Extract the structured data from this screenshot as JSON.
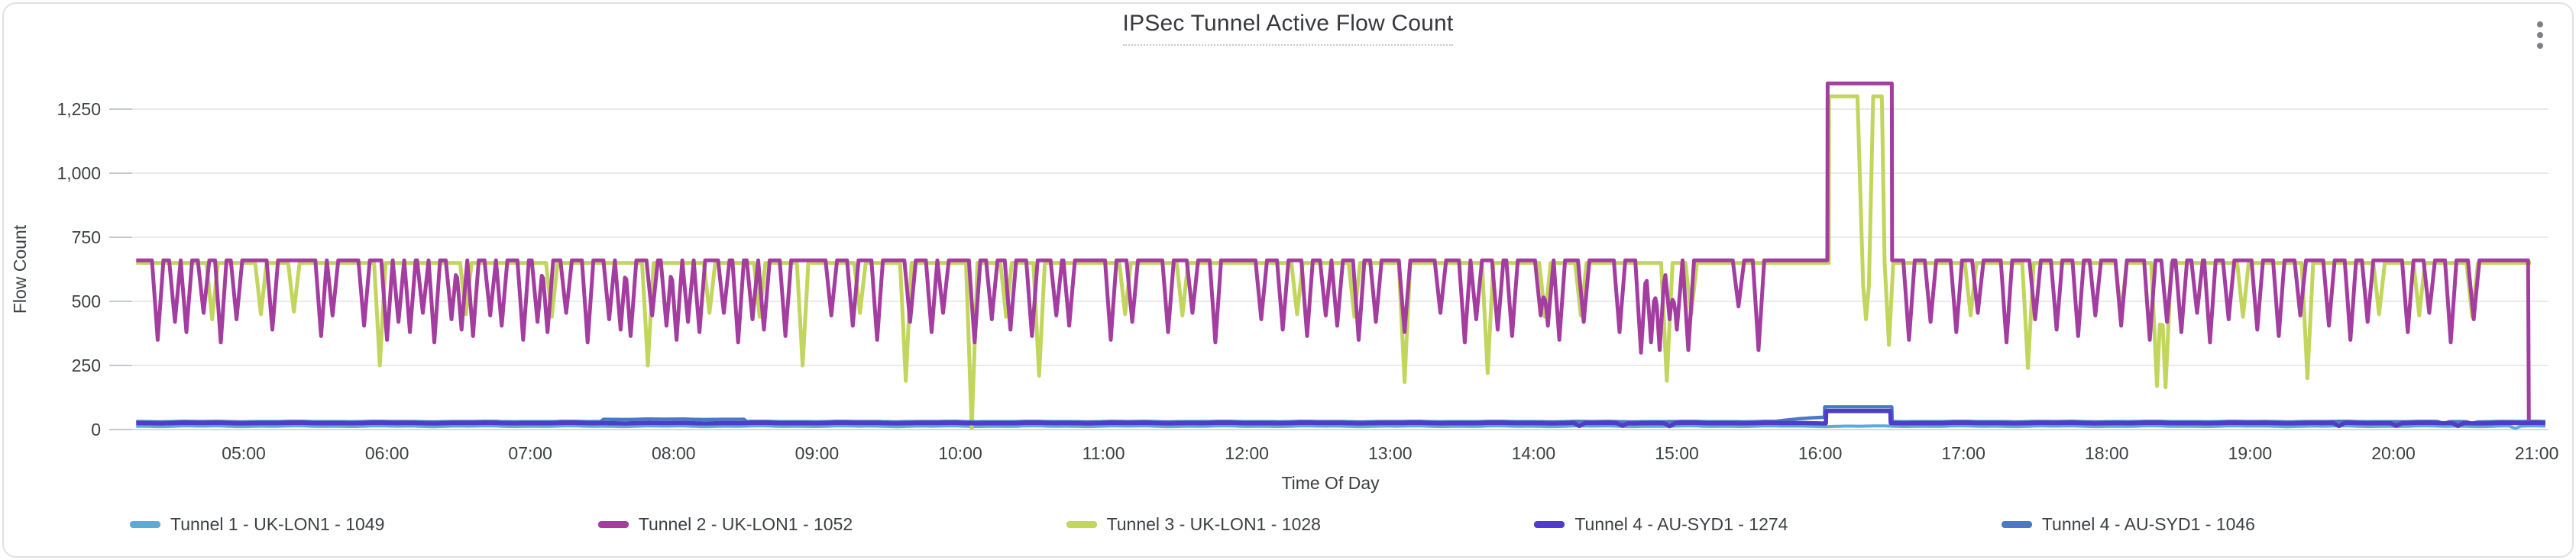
{
  "panel": {
    "title": "IPSec Tunnel Active Flow Count",
    "menu_icon": "kebab-menu"
  },
  "chart_data": {
    "type": "line",
    "title": "IPSec Tunnel Active Flow Count",
    "xlabel": "Time Of Day",
    "ylabel": "Flow Count",
    "grid": true,
    "legend_position": "bottom",
    "x_unit": "hour-of-day",
    "x_range": [
      4.25,
      21.06
    ],
    "ylim": [
      0,
      1400
    ],
    "x_tick_values": [
      5,
      6,
      7,
      8,
      9,
      10,
      11,
      12,
      13,
      14,
      15,
      16,
      17,
      18,
      19,
      20,
      21
    ],
    "x_tick_labels": [
      "05:00",
      "06:00",
      "07:00",
      "08:00",
      "09:00",
      "10:00",
      "11:00",
      "12:00",
      "13:00",
      "14:00",
      "15:00",
      "16:00",
      "17:00",
      "18:00",
      "19:00",
      "20:00",
      "21:00"
    ],
    "y_tick_values": [
      0,
      250,
      500,
      750,
      1000,
      1250
    ],
    "y_tick_labels": [
      "0",
      "250",
      "500",
      "750",
      "1,000",
      "1,250"
    ],
    "grid_color": "#e9eaed",
    "axis_line_color": "#d6d9dd",
    "text_color": "#3c4043",
    "series": [
      {
        "name": "Tunnel 1 - UK-LON1 - 1049",
        "color": "#5ea9d6",
        "width": 4,
        "baseline": 13,
        "noise": 2,
        "start": 4.25,
        "end": 21.06,
        "dips": [
          [
            20.85,
            4
          ]
        ]
      },
      {
        "name": "Tunnel 2 - UK-LON1 - 1052",
        "color": "#a43da0",
        "width": 5,
        "baseline": 660,
        "noise": 0,
        "start": 4.25,
        "end": 20.945,
        "overrides": [
          [
            [
              16.05,
              660
            ],
            [
              16.052,
              1350
            ],
            [
              16.5,
              1350
            ],
            [
              16.502,
              660
            ]
          ],
          [
            [
              20.94,
              660
            ],
            [
              20.945,
              25
            ]
          ]
        ],
        "dips": [
          [
            4.4,
            350
          ],
          [
            4.52,
            420
          ],
          [
            4.6,
            380
          ],
          [
            4.72,
            455
          ],
          [
            4.84,
            340
          ],
          [
            4.95,
            430
          ],
          [
            5.2,
            390
          ],
          [
            5.54,
            365
          ],
          [
            5.62,
            445
          ],
          [
            5.84,
            405
          ],
          [
            6.0,
            350
          ],
          [
            6.08,
            420
          ],
          [
            6.16,
            380
          ],
          [
            6.25,
            455
          ],
          [
            6.33,
            340
          ],
          [
            6.45,
            430
          ],
          [
            6.52,
            390
          ],
          [
            6.6,
            365
          ],
          [
            6.72,
            445
          ],
          [
            6.8,
            405
          ],
          [
            6.95,
            350
          ],
          [
            7.05,
            420
          ],
          [
            7.12,
            380
          ],
          [
            7.25,
            455
          ],
          [
            7.4,
            340
          ],
          [
            7.55,
            430
          ],
          [
            7.63,
            390
          ],
          [
            7.7,
            365
          ],
          [
            7.85,
            445
          ],
          [
            7.95,
            405
          ],
          [
            8.02,
            350
          ],
          [
            8.1,
            420
          ],
          [
            8.18,
            380
          ],
          [
            8.35,
            455
          ],
          [
            8.45,
            340
          ],
          [
            8.55,
            430
          ],
          [
            8.63,
            390
          ],
          [
            8.78,
            365
          ],
          [
            9.1,
            445
          ],
          [
            9.25,
            405
          ],
          [
            9.42,
            350
          ],
          [
            9.65,
            420
          ],
          [
            9.8,
            380
          ],
          [
            9.88,
            455
          ],
          [
            10.1,
            340
          ],
          [
            10.22,
            430
          ],
          [
            10.35,
            390
          ],
          [
            10.5,
            365
          ],
          [
            10.67,
            445
          ],
          [
            10.76,
            405
          ],
          [
            11.05,
            350
          ],
          [
            11.2,
            420
          ],
          [
            11.45,
            380
          ],
          [
            11.62,
            455
          ],
          [
            11.78,
            340
          ],
          [
            12.1,
            430
          ],
          [
            12.25,
            390
          ],
          [
            12.42,
            365
          ],
          [
            12.55,
            445
          ],
          [
            12.63,
            405
          ],
          [
            12.78,
            350
          ],
          [
            12.9,
            420
          ],
          [
            13.1,
            380
          ],
          [
            13.35,
            455
          ],
          [
            13.52,
            340
          ],
          [
            13.6,
            430
          ],
          [
            13.75,
            390
          ],
          [
            13.85,
            365
          ],
          [
            14.05,
            445
          ],
          [
            14.1,
            405
          ],
          [
            14.18,
            350
          ],
          [
            14.35,
            420
          ],
          [
            14.6,
            380
          ],
          [
            14.75,
            300
          ],
          [
            14.82,
            340
          ],
          [
            14.88,
            310
          ],
          [
            14.95,
            430
          ],
          [
            15.0,
            390
          ],
          [
            15.08,
            310
          ],
          [
            15.43,
            480
          ],
          [
            15.57,
            310
          ],
          [
            16.62,
            350
          ],
          [
            16.77,
            420
          ],
          [
            16.95,
            380
          ],
          [
            17.1,
            455
          ],
          [
            17.3,
            340
          ],
          [
            17.5,
            430
          ],
          [
            17.65,
            390
          ],
          [
            17.8,
            365
          ],
          [
            17.92,
            445
          ],
          [
            18.1,
            405
          ],
          [
            18.3,
            350
          ],
          [
            18.42,
            420
          ],
          [
            18.52,
            380
          ],
          [
            18.63,
            455
          ],
          [
            18.72,
            340
          ],
          [
            18.85,
            430
          ],
          [
            19.05,
            390
          ],
          [
            19.2,
            365
          ],
          [
            19.35,
            445
          ],
          [
            19.55,
            405
          ],
          [
            19.7,
            350
          ],
          [
            19.82,
            420
          ],
          [
            20.1,
            380
          ],
          [
            20.25,
            455
          ],
          [
            20.4,
            340
          ],
          [
            20.56,
            430
          ]
        ]
      },
      {
        "name": "Tunnel 3 - UK-LON1 - 1028",
        "color": "#c2d55d",
        "width": 5,
        "baseline": 650,
        "noise": 0,
        "start": 4.25,
        "end": 20.96,
        "overrides": [
          [
            [
              16.06,
              650
            ],
            [
              16.062,
              1300
            ],
            [
              16.26,
              1300
            ],
            [
              16.3,
              560
            ],
            [
              16.32,
              430
            ],
            [
              16.34,
              560
            ],
            [
              16.37,
              1300
            ],
            [
              16.43,
              1300
            ],
            [
              16.45,
              650
            ],
            [
              16.48,
              330
            ],
            [
              16.51,
              650
            ]
          ]
        ],
        "dips": [
          [
            4.78,
            430
          ],
          [
            5.12,
            450
          ],
          [
            5.35,
            460
          ],
          [
            5.95,
            250
          ],
          [
            6.55,
            450
          ],
          [
            7.15,
            440
          ],
          [
            7.82,
            250
          ],
          [
            8.25,
            455
          ],
          [
            8.6,
            440
          ],
          [
            8.9,
            250
          ],
          [
            9.3,
            455
          ],
          [
            9.62,
            190
          ],
          [
            10.08,
            5
          ],
          [
            10.32,
            440
          ],
          [
            10.55,
            210
          ],
          [
            11.15,
            450
          ],
          [
            11.55,
            445
          ],
          [
            12.35,
            450
          ],
          [
            12.75,
            440
          ],
          [
            13.1,
            185
          ],
          [
            13.68,
            220
          ],
          [
            14.08,
            440
          ],
          [
            14.33,
            445
          ],
          [
            14.93,
            190
          ],
          [
            15.1,
            450
          ],
          [
            17.05,
            445
          ],
          [
            17.45,
            240
          ],
          [
            18.1,
            450
          ],
          [
            18.35,
            170
          ],
          [
            18.41,
            165
          ],
          [
            18.95,
            440
          ],
          [
            19.4,
            200
          ],
          [
            19.9,
            450
          ],
          [
            20.18,
            445
          ],
          [
            20.55,
            440
          ]
        ]
      },
      {
        "name": "Tunnel 4 - AU-SYD1 - 1274",
        "color": "#4f3cc8",
        "width": 5.5,
        "baseline": 25,
        "noise": 1.5,
        "start": 4.25,
        "end": 21.06,
        "overrides": [
          [
            [
              16.04,
              26
            ],
            [
              16.042,
              72
            ],
            [
              16.49,
              72
            ],
            [
              16.492,
              28
            ]
          ]
        ],
        "dips": [
          [
            14.32,
            14
          ],
          [
            14.62,
            15
          ],
          [
            14.95,
            13
          ],
          [
            19.62,
            14
          ],
          [
            20.02,
            15
          ],
          [
            20.45,
            14
          ]
        ]
      },
      {
        "name": "Tunnel 4 - AU-SYD1 - 1046",
        "color": "#4b79c2",
        "width": 4.5,
        "baseline": 31,
        "noise": 1.5,
        "start": 4.25,
        "end": 21.06,
        "segments": [
          [
            7.5,
            8.5,
            40
          ]
        ],
        "overrides": [
          [
            [
              15.7,
              33
            ],
            [
              15.85,
              42
            ],
            [
              15.95,
              46
            ],
            [
              16.03,
              48
            ],
            [
              16.032,
              88
            ],
            [
              16.5,
              88
            ],
            [
              16.502,
              36
            ]
          ]
        ],
        "dips": [
          [
            20.35,
            22
          ],
          [
            20.55,
            24
          ]
        ]
      }
    ]
  }
}
